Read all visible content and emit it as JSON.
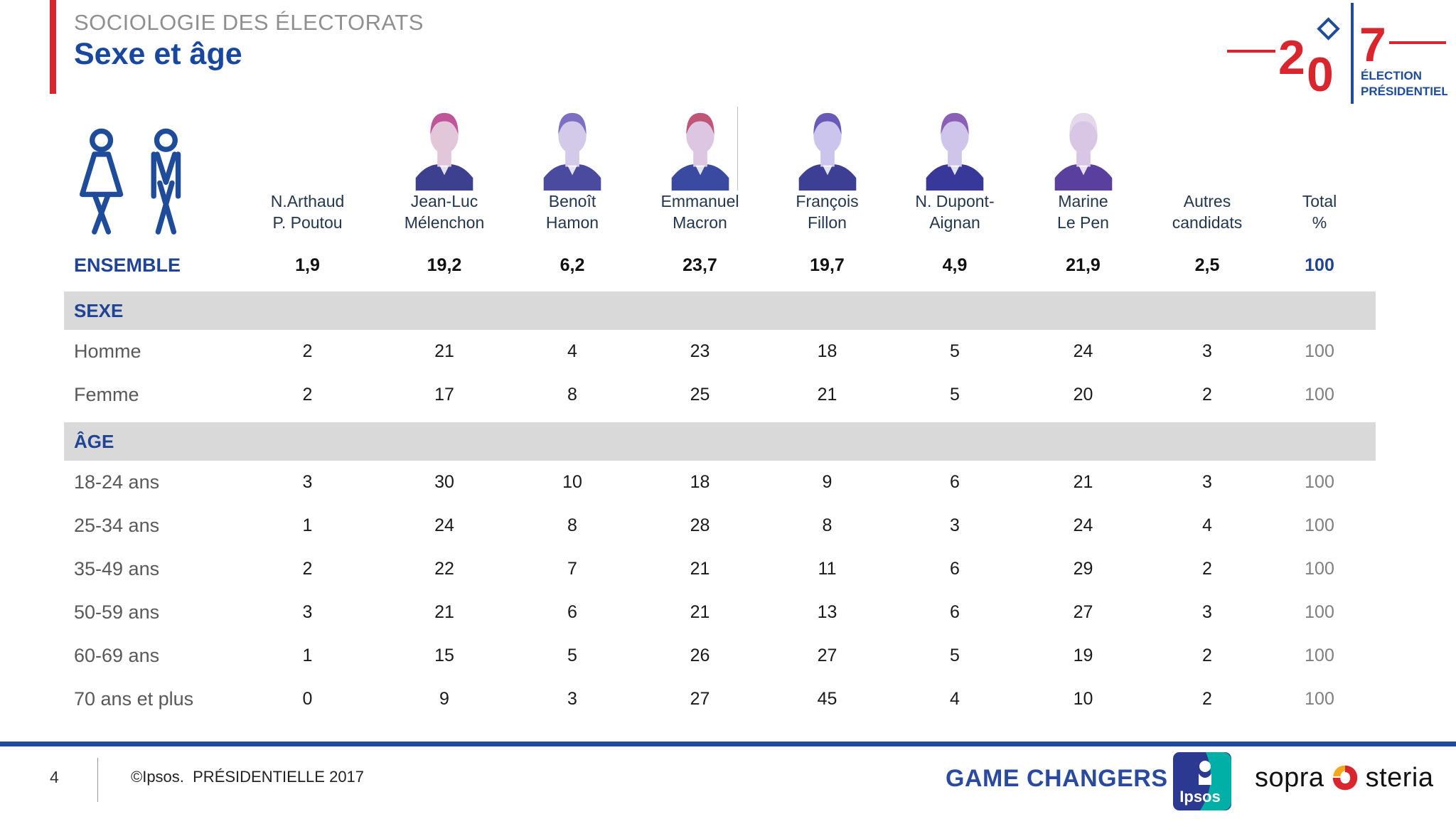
{
  "slide": {
    "kicker": "SOCIOLOGIE DES ÉLECTORATS",
    "title": "Sexe et âge",
    "page_number": "4",
    "copyright": "©Ipsos.  PRÉSIDENTIELLE 2017",
    "tagline": "GAME CHANGERS",
    "logo_2017": {
      "digit_2": "2",
      "digit_0": "0",
      "digit_7": "7",
      "label_line1": "ÉLECTION",
      "label_line2": "PRÉSIDENTIELLE"
    },
    "brands": {
      "ipsos": "Ipsos",
      "sopra": "sopra",
      "steria": "steria"
    },
    "colors": {
      "accent_red": "#D9262E",
      "brand_blue": "#1F4496",
      "band_gray": "#D9D9D9",
      "ipsos_teal": "#00B0A6",
      "ipsos_navy": "#2B3990"
    }
  },
  "table": {
    "columns": [
      {
        "name_line1": "N.Arthaud",
        "name_line2": "P. Poutou",
        "photo": null
      },
      {
        "name_line1": "Jean-Luc",
        "name_line2": "Mélenchon",
        "photo": {
          "hair": "#c0569a",
          "skin": "#e2c6da",
          "suit": "#3d3f8f"
        }
      },
      {
        "name_line1": "Benoît",
        "name_line2": "Hamon",
        "photo": {
          "hair": "#7d6fc2",
          "skin": "#d3c9e8",
          "suit": "#4a4a9e"
        }
      },
      {
        "name_line1": "Emmanuel",
        "name_line2": "Macron",
        "photo": {
          "hair": "#c05577",
          "skin": "#dcc6e2",
          "suit": "#3a4aa0"
        }
      },
      {
        "name_line1": "François",
        "name_line2": "Fillon",
        "photo": {
          "hair": "#6a5ab8",
          "skin": "#cbc4ec",
          "suit": "#3c3f94"
        }
      },
      {
        "name_line1": "N. Dupont-",
        "name_line2": "Aignan",
        "photo": {
          "hair": "#8a5fb5",
          "skin": "#cfc5ea",
          "suit": "#37389a"
        }
      },
      {
        "name_line1": "Marine",
        "name_line2": "Le Pen",
        "photo": {
          "hair": "#e6d8ec",
          "skin": "#d8c6e4",
          "suit": "#5a3f9e"
        }
      },
      {
        "name_line1": "Autres",
        "name_line2": "candidats",
        "photo": null
      },
      {
        "name_line1": "Total",
        "name_line2": "%",
        "photo": null
      }
    ],
    "ensemble": {
      "label": "ENSEMBLE",
      "values": [
        "1,9",
        "19,2",
        "6,2",
        "23,7",
        "19,7",
        "4,9",
        "21,9",
        "2,5",
        "100"
      ]
    },
    "sections": [
      {
        "header": "SEXE",
        "rows": [
          {
            "label": "Homme",
            "values": [
              "2",
              "21",
              "4",
              "23",
              "18",
              "5",
              "24",
              "3",
              "100"
            ]
          },
          {
            "label": "Femme",
            "values": [
              "2",
              "17",
              "8",
              "25",
              "21",
              "5",
              "20",
              "2",
              "100"
            ]
          }
        ]
      },
      {
        "header": "ÂGE",
        "rows": [
          {
            "label": "18-24 ans",
            "values": [
              "3",
              "30",
              "10",
              "18",
              "9",
              "6",
              "21",
              "3",
              "100"
            ]
          },
          {
            "label": "25-34 ans",
            "values": [
              "1",
              "24",
              "8",
              "28",
              "8",
              "3",
              "24",
              "4",
              "100"
            ]
          },
          {
            "label": "35-49 ans",
            "values": [
              "2",
              "22",
              "7",
              "21",
              "11",
              "6",
              "29",
              "2",
              "100"
            ]
          },
          {
            "label": "50-59 ans",
            "values": [
              "3",
              "21",
              "6",
              "21",
              "13",
              "6",
              "27",
              "3",
              "100"
            ]
          },
          {
            "label": "60-69 ans",
            "values": [
              "1",
              "15",
              "5",
              "26",
              "27",
              "5",
              "19",
              "2",
              "100"
            ]
          },
          {
            "label": "70 ans et plus",
            "values": [
              "0",
              "9",
              "3",
              "27",
              "45",
              "4",
              "10",
              "2",
              "100"
            ]
          }
        ]
      }
    ]
  }
}
